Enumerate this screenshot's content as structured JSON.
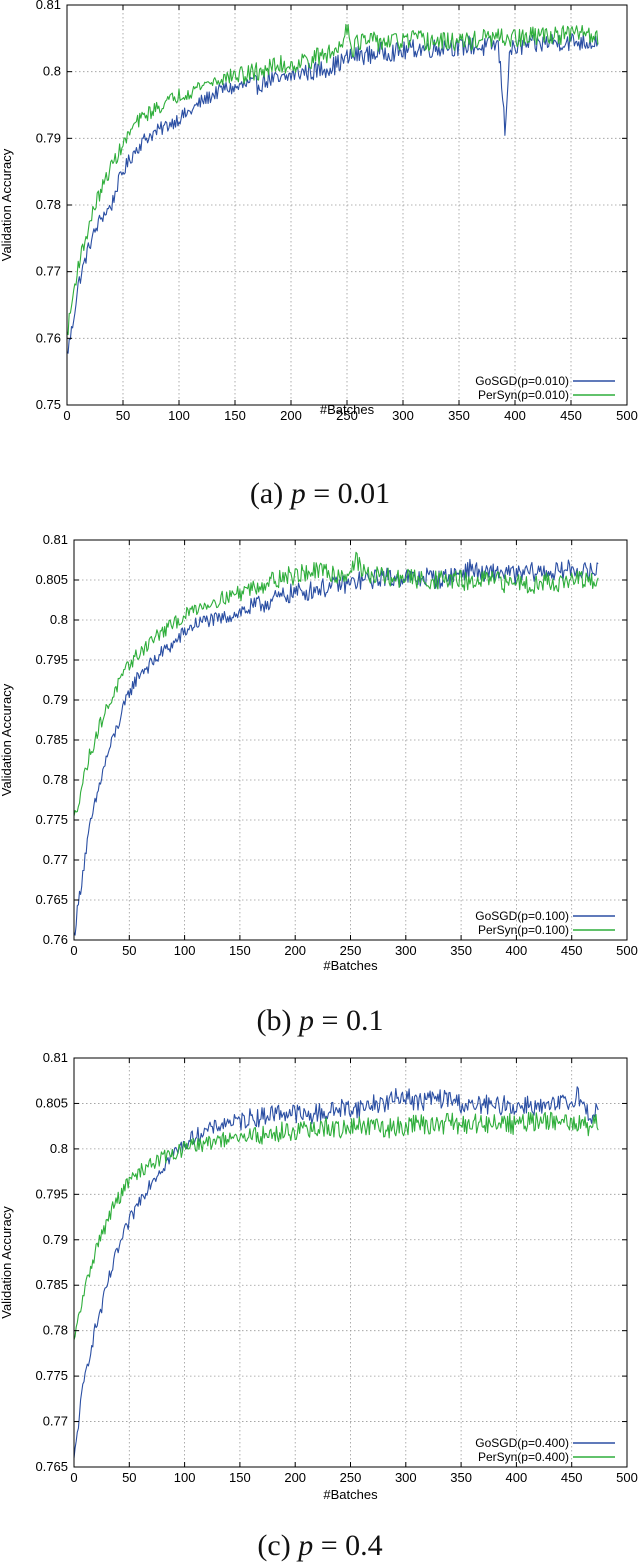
{
  "chart_data": [
    {
      "type": "line",
      "caption_prefix": "(a) ",
      "caption_var": "p",
      "caption_suffix": " = 0.01",
      "xlabel": "#Batches",
      "ylabel": "Validation Accuracy",
      "xlim": [
        0,
        500
      ],
      "ylim": [
        0.75,
        0.81
      ],
      "xticks": [
        0,
        50,
        100,
        150,
        200,
        250,
        300,
        350,
        400,
        450,
        500
      ],
      "yticks": [
        0.75,
        0.76,
        0.77,
        0.78,
        0.79,
        0.8,
        0.81
      ],
      "ytick_labels": [
        "0.75",
        "0.76",
        "0.77",
        "0.78",
        "0.79",
        "0.8",
        "0.81"
      ],
      "grid": true,
      "legend_position": "bottom-right",
      "series": [
        {
          "name": "GoSGD(p=0.010)",
          "color": "#2b4fa3",
          "x": [
            0,
            5,
            10,
            15,
            20,
            25,
            30,
            35,
            40,
            45,
            50,
            60,
            70,
            80,
            90,
            100,
            110,
            120,
            130,
            140,
            150,
            160,
            170,
            180,
            190,
            200,
            210,
            220,
            230,
            240,
            250,
            260,
            270,
            280,
            290,
            300,
            310,
            320,
            330,
            340,
            350,
            360,
            370,
            380,
            385,
            388,
            391,
            395,
            400,
            410,
            420,
            430,
            440,
            450,
            460,
            470,
            474
          ],
          "y": [
            0.7575,
            0.762,
            0.768,
            0.771,
            0.774,
            0.776,
            0.778,
            0.779,
            0.78,
            0.783,
            0.785,
            0.788,
            0.79,
            0.791,
            0.792,
            0.793,
            0.794,
            0.7955,
            0.7965,
            0.7975,
            0.7975,
            0.798,
            0.798,
            0.799,
            0.7985,
            0.7995,
            0.8,
            0.8,
            0.8005,
            0.801,
            0.802,
            0.8025,
            0.8025,
            0.803,
            0.803,
            0.803,
            0.8035,
            0.8035,
            0.8035,
            0.804,
            0.8035,
            0.804,
            0.8035,
            0.804,
            0.804,
            0.7985,
            0.791,
            0.803,
            0.8035,
            0.804,
            0.804,
            0.8045,
            0.8045,
            0.8045,
            0.8045,
            0.8045,
            0.805
          ]
        },
        {
          "name": "PerSyn(p=0.010)",
          "color": "#2fae3b",
          "x": [
            0,
            5,
            10,
            15,
            20,
            25,
            30,
            35,
            40,
            45,
            50,
            60,
            70,
            80,
            90,
            100,
            110,
            120,
            130,
            140,
            150,
            160,
            170,
            180,
            190,
            200,
            210,
            220,
            230,
            240,
            245,
            250,
            255,
            260,
            270,
            280,
            290,
            300,
            310,
            320,
            330,
            340,
            350,
            360,
            370,
            380,
            390,
            400,
            410,
            420,
            430,
            440,
            450,
            460,
            470,
            474
          ],
          "y": [
            0.7605,
            0.766,
            0.771,
            0.774,
            0.777,
            0.78,
            0.782,
            0.784,
            0.786,
            0.7875,
            0.789,
            0.792,
            0.7935,
            0.7945,
            0.7955,
            0.7965,
            0.797,
            0.798,
            0.7985,
            0.799,
            0.7995,
            0.7995,
            0.8,
            0.8005,
            0.801,
            0.801,
            0.8015,
            0.802,
            0.8025,
            0.803,
            0.8045,
            0.807,
            0.8035,
            0.8045,
            0.8045,
            0.8045,
            0.8045,
            0.8045,
            0.805,
            0.8045,
            0.8045,
            0.8045,
            0.8045,
            0.8045,
            0.805,
            0.805,
            0.805,
            0.805,
            0.805,
            0.8055,
            0.8055,
            0.8055,
            0.8055,
            0.806,
            0.8055,
            0.805
          ]
        }
      ]
    },
    {
      "type": "line",
      "caption_prefix": "(b) ",
      "caption_var": "p",
      "caption_suffix": " = 0.1",
      "xlabel": "#Batches",
      "ylabel": "Validation Accuracy",
      "xlim": [
        0,
        500
      ],
      "ylim": [
        0.76,
        0.81
      ],
      "xticks": [
        0,
        50,
        100,
        150,
        200,
        250,
        300,
        350,
        400,
        450,
        500
      ],
      "yticks": [
        0.76,
        0.765,
        0.77,
        0.775,
        0.78,
        0.785,
        0.79,
        0.795,
        0.8,
        0.805,
        0.81
      ],
      "ytick_labels": [
        "0.76",
        "0.765",
        "0.77",
        "0.775",
        "0.78",
        "0.785",
        "0.79",
        "0.795",
        "0.8",
        "0.805",
        "0.81"
      ],
      "grid": true,
      "legend_position": "bottom-right",
      "series": [
        {
          "name": "GoSGD(p=0.100)",
          "color": "#2b4fa3",
          "x": [
            0,
            5,
            10,
            15,
            20,
            25,
            30,
            35,
            40,
            45,
            50,
            60,
            70,
            80,
            90,
            100,
            110,
            120,
            130,
            140,
            150,
            160,
            170,
            180,
            190,
            200,
            210,
            220,
            230,
            240,
            250,
            260,
            270,
            280,
            290,
            300,
            310,
            320,
            330,
            340,
            350,
            360,
            370,
            380,
            390,
            400,
            410,
            420,
            430,
            440,
            450,
            460,
            470,
            474
          ],
          "y": [
            0.7605,
            0.7655,
            0.7705,
            0.7745,
            0.7775,
            0.7805,
            0.783,
            0.785,
            0.787,
            0.789,
            0.791,
            0.7935,
            0.7945,
            0.796,
            0.797,
            0.7985,
            0.7995,
            0.8,
            0.8,
            0.8005,
            0.801,
            0.8015,
            0.802,
            0.8025,
            0.803,
            0.8035,
            0.8035,
            0.804,
            0.804,
            0.8045,
            0.8045,
            0.805,
            0.805,
            0.8055,
            0.805,
            0.8055,
            0.805,
            0.8055,
            0.805,
            0.8055,
            0.806,
            0.8065,
            0.8055,
            0.806,
            0.806,
            0.8055,
            0.806,
            0.806,
            0.806,
            0.806,
            0.8065,
            0.806,
            0.806,
            0.8065
          ]
        },
        {
          "name": "PerSyn(p=0.100)",
          "color": "#2fae3b",
          "x": [
            0,
            5,
            10,
            15,
            20,
            25,
            30,
            35,
            40,
            45,
            50,
            60,
            70,
            80,
            90,
            100,
            110,
            120,
            130,
            140,
            150,
            160,
            170,
            180,
            190,
            200,
            210,
            220,
            230,
            240,
            250,
            255,
            260,
            270,
            280,
            290,
            300,
            310,
            320,
            330,
            340,
            350,
            360,
            370,
            380,
            390,
            400,
            410,
            420,
            430,
            440,
            450,
            460,
            470,
            474
          ],
          "y": [
            0.775,
            0.778,
            0.781,
            0.7835,
            0.7855,
            0.7875,
            0.789,
            0.7905,
            0.792,
            0.793,
            0.7945,
            0.796,
            0.7975,
            0.7985,
            0.7995,
            0.8005,
            0.8015,
            0.802,
            0.8025,
            0.803,
            0.8035,
            0.804,
            0.8045,
            0.805,
            0.8055,
            0.8055,
            0.806,
            0.806,
            0.806,
            0.8055,
            0.806,
            0.808,
            0.806,
            0.8055,
            0.8055,
            0.805,
            0.8055,
            0.805,
            0.805,
            0.805,
            0.805,
            0.805,
            0.8045,
            0.805,
            0.805,
            0.8045,
            0.805,
            0.8045,
            0.8045,
            0.805,
            0.8045,
            0.805,
            0.805,
            0.8045,
            0.805
          ]
        }
      ]
    },
    {
      "type": "line",
      "caption_prefix": "(c) ",
      "caption_var": "p",
      "caption_suffix": " = 0.4",
      "xlabel": "#Batches",
      "ylabel": "Validation Accuracy",
      "xlim": [
        0,
        500
      ],
      "ylim": [
        0.765,
        0.81
      ],
      "xticks": [
        0,
        50,
        100,
        150,
        200,
        250,
        300,
        350,
        400,
        450,
        500
      ],
      "yticks": [
        0.765,
        0.77,
        0.775,
        0.78,
        0.785,
        0.79,
        0.795,
        0.8,
        0.805,
        0.81
      ],
      "ytick_labels": [
        "0.765",
        "0.77",
        "0.775",
        "0.78",
        "0.785",
        "0.79",
        "0.795",
        "0.8",
        "0.805",
        "0.81"
      ],
      "grid": true,
      "legend_position": "bottom-right",
      "series": [
        {
          "name": "GoSGD(p=0.400)",
          "color": "#2b4fa3",
          "x": [
            0,
            5,
            10,
            15,
            20,
            25,
            30,
            35,
            40,
            45,
            50,
            60,
            70,
            80,
            90,
            100,
            110,
            120,
            130,
            140,
            150,
            160,
            170,
            180,
            190,
            200,
            210,
            220,
            230,
            240,
            250,
            260,
            270,
            280,
            290,
            300,
            310,
            320,
            330,
            340,
            350,
            360,
            370,
            380,
            390,
            400,
            410,
            420,
            430,
            440,
            450,
            455,
            460,
            470,
            474
          ],
          "y": [
            0.7655,
            0.771,
            0.775,
            0.778,
            0.7805,
            0.7825,
            0.785,
            0.787,
            0.789,
            0.7905,
            0.792,
            0.7945,
            0.7965,
            0.798,
            0.7995,
            0.8005,
            0.8015,
            0.802,
            0.8025,
            0.803,
            0.803,
            0.8035,
            0.8035,
            0.804,
            0.804,
            0.804,
            0.8035,
            0.804,
            0.804,
            0.8045,
            0.8045,
            0.8045,
            0.805,
            0.805,
            0.8055,
            0.806,
            0.805,
            0.8055,
            0.8055,
            0.8055,
            0.805,
            0.8045,
            0.805,
            0.8045,
            0.805,
            0.8045,
            0.805,
            0.8045,
            0.8045,
            0.805,
            0.805,
            0.8065,
            0.8045,
            0.8035,
            0.805
          ]
        },
        {
          "name": "PerSyn(p=0.400)",
          "color": "#2fae3b",
          "x": [
            0,
            5,
            10,
            15,
            20,
            25,
            30,
            35,
            40,
            45,
            50,
            60,
            70,
            80,
            90,
            100,
            110,
            120,
            130,
            140,
            150,
            160,
            170,
            180,
            190,
            200,
            210,
            220,
            230,
            240,
            250,
            260,
            270,
            280,
            290,
            300,
            310,
            320,
            330,
            340,
            350,
            360,
            370,
            380,
            390,
            400,
            410,
            420,
            430,
            440,
            450,
            460,
            465,
            470,
            474
          ],
          "y": [
            0.7785,
            0.782,
            0.7845,
            0.787,
            0.789,
            0.7905,
            0.792,
            0.7935,
            0.7945,
            0.7955,
            0.7965,
            0.7975,
            0.7985,
            0.799,
            0.7995,
            0.8,
            0.8005,
            0.8005,
            0.801,
            0.801,
            0.801,
            0.8015,
            0.8015,
            0.8015,
            0.802,
            0.802,
            0.802,
            0.802,
            0.8025,
            0.802,
            0.8025,
            0.8025,
            0.8025,
            0.802,
            0.8025,
            0.8025,
            0.803,
            0.8025,
            0.8025,
            0.803,
            0.8025,
            0.803,
            0.8025,
            0.803,
            0.803,
            0.8025,
            0.803,
            0.803,
            0.803,
            0.803,
            0.8025,
            0.8035,
            0.8015,
            0.803,
            0.803
          ]
        }
      ]
    }
  ]
}
